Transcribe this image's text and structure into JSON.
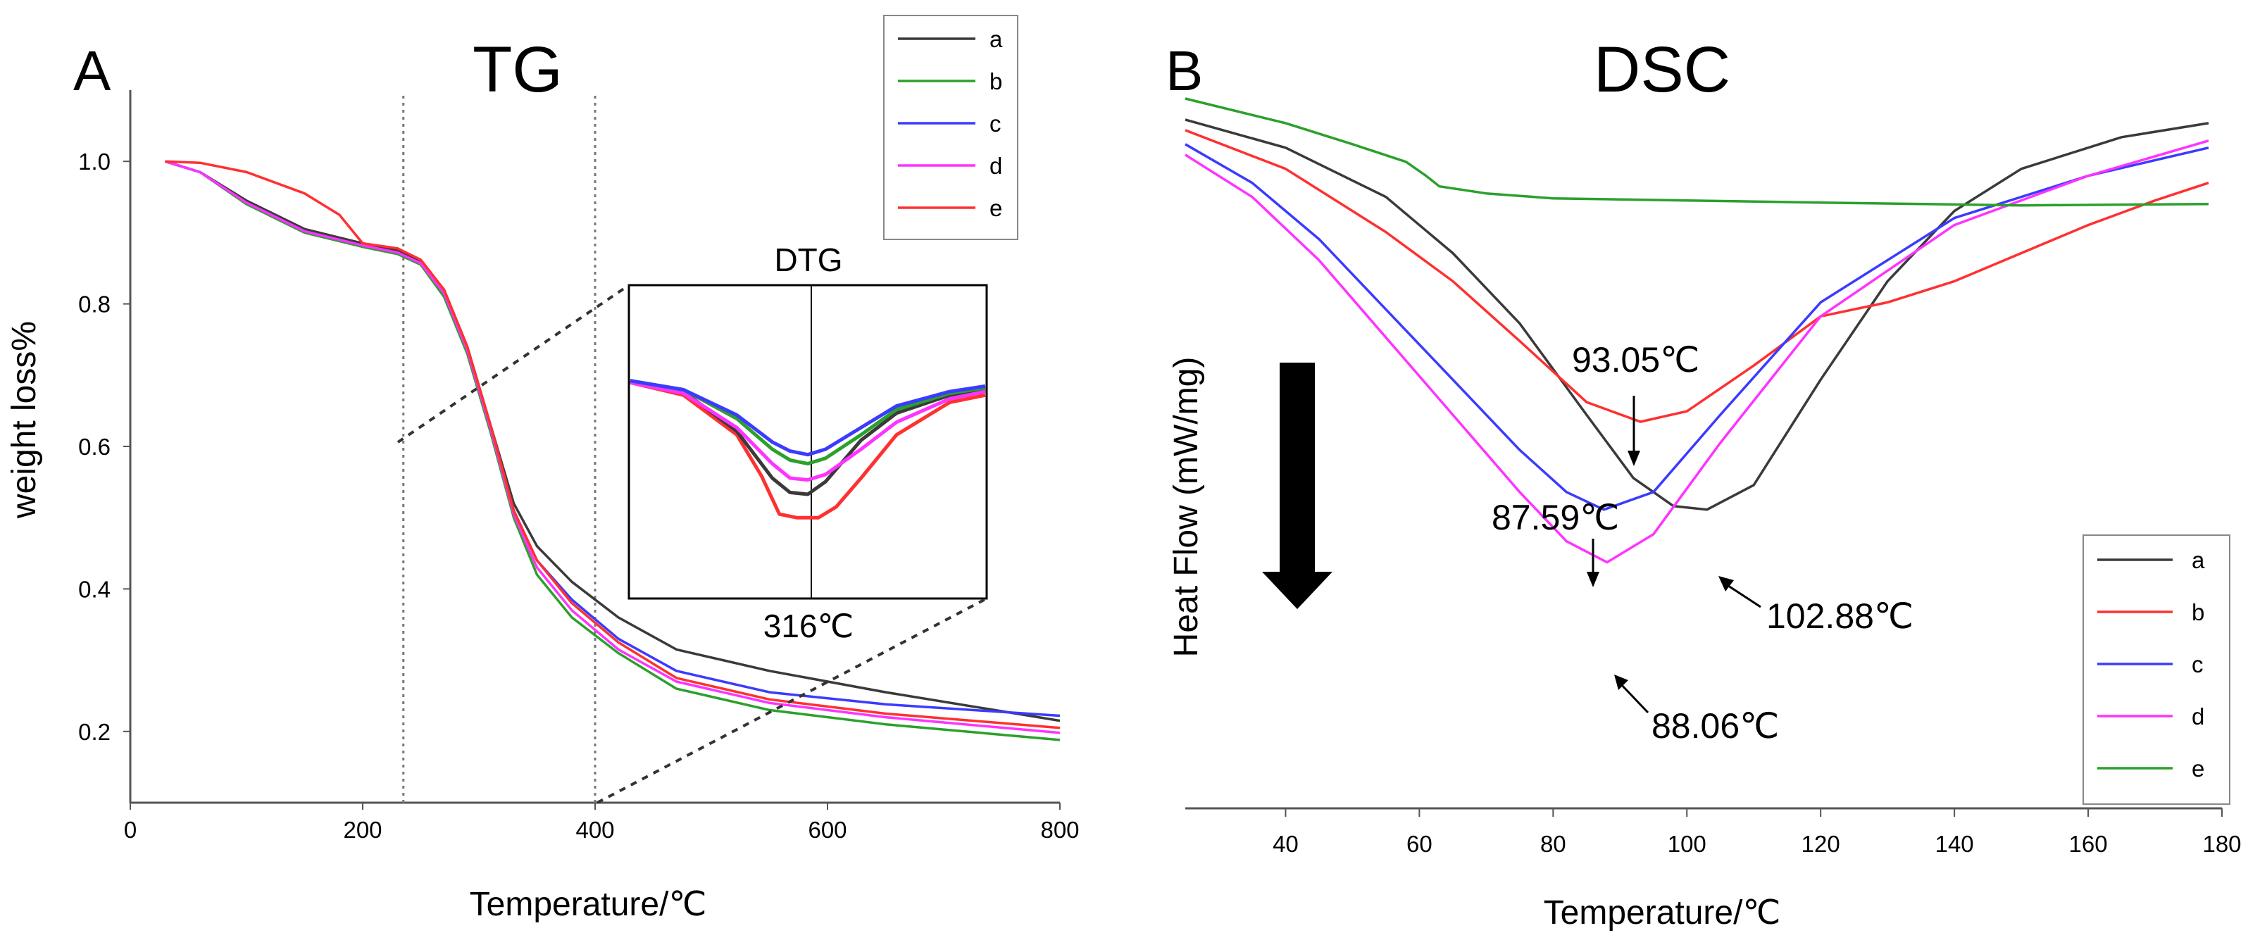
{
  "colors": {
    "a": "#3a3a3a",
    "b_tg": "#2ca02c",
    "c": "#3b3bff",
    "d": "#ff33ff",
    "e_tg": "#ff3030",
    "b_dsc": "#ff3030",
    "e_dsc": "#2ca02c",
    "axis": "#555555"
  },
  "chart_data": [
    {
      "panel": "A",
      "type": "line",
      "title": "TG",
      "xlabel": "Temperature/℃",
      "ylabel": "weight loss%",
      "xlim": [
        0,
        800
      ],
      "ylim": [
        0.1,
        1.1
      ],
      "xticks": [
        0,
        200,
        400,
        600,
        800
      ],
      "yticks": [
        0.2,
        0.4,
        0.6,
        0.8,
        1.0
      ],
      "xtick_labels": [
        "0",
        "200",
        "400",
        "600",
        "800"
      ],
      "ytick_labels": [
        "0.2",
        "0.4",
        "0.6",
        "0.8",
        "1.0"
      ],
      "legend_position": "top-right",
      "dotted_lines_x": [
        235,
        400
      ],
      "series": [
        {
          "name": "a",
          "points": [
            [
              30,
              1.0
            ],
            [
              60,
              0.985
            ],
            [
              100,
              0.945
            ],
            [
              150,
              0.905
            ],
            [
              200,
              0.885
            ],
            [
              230,
              0.875
            ],
            [
              250,
              0.86
            ],
            [
              270,
              0.82
            ],
            [
              290,
              0.74
            ],
            [
              310,
              0.63
            ],
            [
              330,
              0.52
            ],
            [
              350,
              0.46
            ],
            [
              380,
              0.41
            ],
            [
              420,
              0.36
            ],
            [
              470,
              0.315
            ],
            [
              550,
              0.285
            ],
            [
              650,
              0.255
            ],
            [
              800,
              0.215
            ]
          ]
        },
        {
          "name": "b",
          "points": [
            [
              30,
              1.0
            ],
            [
              60,
              0.985
            ],
            [
              100,
              0.94
            ],
            [
              150,
              0.9
            ],
            [
              200,
              0.88
            ],
            [
              230,
              0.87
            ],
            [
              250,
              0.855
            ],
            [
              270,
              0.81
            ],
            [
              290,
              0.73
            ],
            [
              310,
              0.62
            ],
            [
              330,
              0.5
            ],
            [
              350,
              0.42
            ],
            [
              380,
              0.36
            ],
            [
              420,
              0.31
            ],
            [
              470,
              0.26
            ],
            [
              550,
              0.23
            ],
            [
              650,
              0.21
            ],
            [
              800,
              0.188
            ]
          ]
        },
        {
          "name": "c",
          "points": [
            [
              30,
              1.0
            ],
            [
              60,
              0.985
            ],
            [
              100,
              0.942
            ],
            [
              150,
              0.902
            ],
            [
              200,
              0.882
            ],
            [
              230,
              0.872
            ],
            [
              250,
              0.857
            ],
            [
              270,
              0.815
            ],
            [
              290,
              0.735
            ],
            [
              310,
              0.625
            ],
            [
              330,
              0.51
            ],
            [
              350,
              0.44
            ],
            [
              380,
              0.385
            ],
            [
              420,
              0.33
            ],
            [
              470,
              0.285
            ],
            [
              550,
              0.255
            ],
            [
              650,
              0.238
            ],
            [
              800,
              0.222
            ]
          ]
        },
        {
          "name": "d",
          "points": [
            [
              30,
              1.0
            ],
            [
              60,
              0.985
            ],
            [
              100,
              0.942
            ],
            [
              150,
              0.902
            ],
            [
              200,
              0.882
            ],
            [
              230,
              0.872
            ],
            [
              250,
              0.857
            ],
            [
              270,
              0.815
            ],
            [
              290,
              0.735
            ],
            [
              310,
              0.625
            ],
            [
              330,
              0.505
            ],
            [
              350,
              0.43
            ],
            [
              380,
              0.37
            ],
            [
              420,
              0.315
            ],
            [
              470,
              0.27
            ],
            [
              550,
              0.24
            ],
            [
              650,
              0.22
            ],
            [
              800,
              0.198
            ]
          ]
        },
        {
          "name": "e",
          "points": [
            [
              30,
              1.0
            ],
            [
              60,
              0.998
            ],
            [
              100,
              0.985
            ],
            [
              150,
              0.955
            ],
            [
              180,
              0.925
            ],
            [
              200,
              0.885
            ],
            [
              230,
              0.878
            ],
            [
              250,
              0.862
            ],
            [
              270,
              0.82
            ],
            [
              290,
              0.74
            ],
            [
              310,
              0.63
            ],
            [
              330,
              0.51
            ],
            [
              350,
              0.44
            ],
            [
              380,
              0.38
            ],
            [
              420,
              0.325
            ],
            [
              470,
              0.275
            ],
            [
              550,
              0.245
            ],
            [
              650,
              0.225
            ],
            [
              800,
              0.205
            ]
          ]
        }
      ]
    },
    {
      "panel": "A-inset",
      "type": "line",
      "title": "DTG",
      "label": "316℃",
      "series": [
        {
          "name": "a",
          "points": [
            [
              0,
              0.12
            ],
            [
              0.15,
              0.18
            ],
            [
              0.3,
              0.4
            ],
            [
              0.4,
              0.66
            ],
            [
              0.45,
              0.74
            ],
            [
              0.5,
              0.75
            ],
            [
              0.55,
              0.68
            ],
            [
              0.65,
              0.45
            ],
            [
              0.75,
              0.3
            ],
            [
              0.9,
              0.2
            ],
            [
              1,
              0.17
            ]
          ]
        },
        {
          "name": "b",
          "points": [
            [
              0,
              0.12
            ],
            [
              0.15,
              0.17
            ],
            [
              0.3,
              0.33
            ],
            [
              0.4,
              0.5
            ],
            [
              0.45,
              0.56
            ],
            [
              0.5,
              0.58
            ],
            [
              0.55,
              0.55
            ],
            [
              0.65,
              0.42
            ],
            [
              0.75,
              0.28
            ],
            [
              0.9,
              0.19
            ],
            [
              1,
              0.16
            ]
          ]
        },
        {
          "name": "c",
          "points": [
            [
              0,
              0.12
            ],
            [
              0.15,
              0.17
            ],
            [
              0.3,
              0.31
            ],
            [
              0.4,
              0.46
            ],
            [
              0.45,
              0.51
            ],
            [
              0.5,
              0.53
            ],
            [
              0.55,
              0.5
            ],
            [
              0.65,
              0.38
            ],
            [
              0.75,
              0.26
            ],
            [
              0.9,
              0.18
            ],
            [
              1,
              0.15
            ]
          ]
        },
        {
          "name": "d",
          "points": [
            [
              0,
              0.13
            ],
            [
              0.15,
              0.19
            ],
            [
              0.3,
              0.38
            ],
            [
              0.4,
              0.58
            ],
            [
              0.45,
              0.66
            ],
            [
              0.5,
              0.67
            ],
            [
              0.55,
              0.64
            ],
            [
              0.65,
              0.5
            ],
            [
              0.75,
              0.35
            ],
            [
              0.9,
              0.22
            ],
            [
              1,
              0.18
            ]
          ]
        },
        {
          "name": "e",
          "points": [
            [
              0,
              0.13
            ],
            [
              0.15,
              0.2
            ],
            [
              0.3,
              0.42
            ],
            [
              0.37,
              0.65
            ],
            [
              0.42,
              0.86
            ],
            [
              0.47,
              0.88
            ],
            [
              0.53,
              0.88
            ],
            [
              0.58,
              0.82
            ],
            [
              0.65,
              0.66
            ],
            [
              0.75,
              0.42
            ],
            [
              0.9,
              0.24
            ],
            [
              1,
              0.2
            ]
          ]
        }
      ]
    },
    {
      "panel": "B",
      "type": "line",
      "title": "DSC",
      "xlabel": "Temperature/℃",
      "ylabel": "Heat Flow (mW/mg)",
      "xlim": [
        25,
        180
      ],
      "ylim": [
        0,
        1
      ],
      "xticks": [
        40,
        60,
        80,
        100,
        120,
        140,
        160,
        180
      ],
      "xtick_labels": [
        "40",
        "60",
        "80",
        "100",
        "120",
        "140",
        "160",
        "180"
      ],
      "legend_position": "bottom-right",
      "series": [
        {
          "name": "a",
          "points": [
            [
              25,
              0.95
            ],
            [
              40,
              0.91
            ],
            [
              55,
              0.84
            ],
            [
              65,
              0.76
            ],
            [
              75,
              0.66
            ],
            [
              85,
              0.53
            ],
            [
              92,
              0.44
            ],
            [
              98,
              0.4
            ],
            [
              103,
              0.395
            ],
            [
              110,
              0.43
            ],
            [
              120,
              0.58
            ],
            [
              130,
              0.72
            ],
            [
              140,
              0.82
            ],
            [
              150,
              0.88
            ],
            [
              165,
              0.925
            ],
            [
              178,
              0.945
            ]
          ]
        },
        {
          "name": "b",
          "points": [
            [
              25,
              0.935
            ],
            [
              40,
              0.88
            ],
            [
              55,
              0.79
            ],
            [
              65,
              0.72
            ],
            [
              75,
              0.635
            ],
            [
              85,
              0.548
            ],
            [
              93.05,
              0.52
            ],
            [
              100,
              0.535
            ],
            [
              110,
              0.6
            ],
            [
              120,
              0.67
            ],
            [
              130,
              0.69
            ],
            [
              140,
              0.72
            ],
            [
              150,
              0.76
            ],
            [
              160,
              0.8
            ],
            [
              170,
              0.835
            ],
            [
              178,
              0.86
            ]
          ]
        },
        {
          "name": "c",
          "points": [
            [
              25,
              0.915
            ],
            [
              35,
              0.86
            ],
            [
              45,
              0.78
            ],
            [
              55,
              0.68
            ],
            [
              65,
              0.58
            ],
            [
              75,
              0.48
            ],
            [
              82,
              0.42
            ],
            [
              87.59,
              0.395
            ],
            [
              95,
              0.42
            ],
            [
              105,
              0.53
            ],
            [
              120,
              0.69
            ],
            [
              140,
              0.81
            ],
            [
              160,
              0.87
            ],
            [
              178,
              0.91
            ]
          ]
        },
        {
          "name": "d",
          "points": [
            [
              25,
              0.9
            ],
            [
              35,
              0.84
            ],
            [
              45,
              0.75
            ],
            [
              55,
              0.64
            ],
            [
              65,
              0.53
            ],
            [
              75,
              0.42
            ],
            [
              82,
              0.35
            ],
            [
              88.06,
              0.32
            ],
            [
              95,
              0.36
            ],
            [
              105,
              0.49
            ],
            [
              120,
              0.67
            ],
            [
              140,
              0.8
            ],
            [
              160,
              0.87
            ],
            [
              178,
              0.92
            ]
          ]
        },
        {
          "name": "e",
          "points": [
            [
              25,
              0.98
            ],
            [
              40,
              0.945
            ],
            [
              50,
              0.915
            ],
            [
              58,
              0.89
            ],
            [
              61,
              0.87
            ],
            [
              63,
              0.855
            ],
            [
              70,
              0.845
            ],
            [
              80,
              0.838
            ],
            [
              100,
              0.835
            ],
            [
              120,
              0.832
            ],
            [
              150,
              0.828
            ],
            [
              178,
              0.83
            ]
          ]
        }
      ],
      "annotations": [
        {
          "text": "93.05℃",
          "x": 93.05,
          "y": 0.52,
          "series": "b"
        },
        {
          "text": "87.59℃",
          "x": 87.59,
          "y": 0.395,
          "series": "c"
        },
        {
          "text": "102.88℃",
          "x": 102.88,
          "y": 0.395,
          "series": "a"
        },
        {
          "text": "88.06℃",
          "x": 88.06,
          "y": 0.32,
          "series": "d"
        }
      ]
    }
  ],
  "legend_items": [
    "a",
    "b",
    "c",
    "d",
    "e"
  ]
}
